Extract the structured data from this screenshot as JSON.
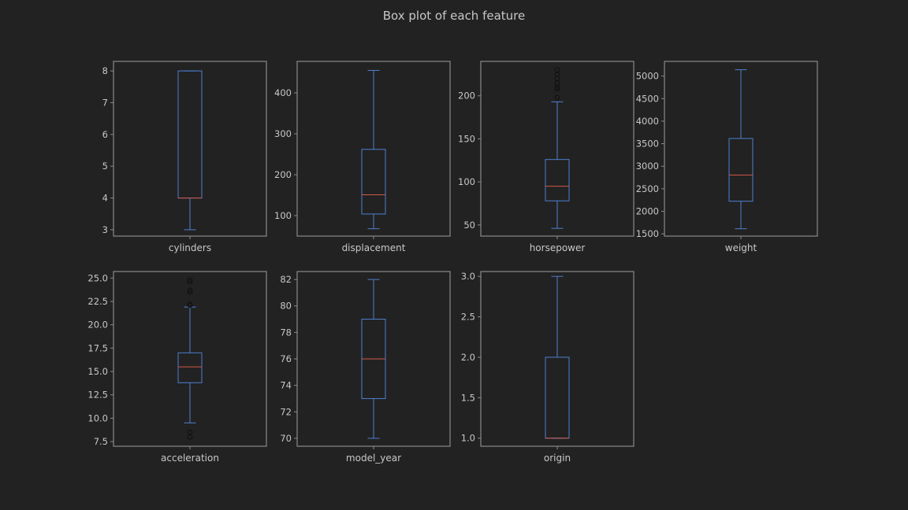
{
  "chart_data": {
    "title": "Box plot of each feature",
    "type": "box",
    "layout": {
      "rows": 2,
      "cols": 4
    },
    "colors": {
      "background": "#222222",
      "frame": "#8a8a8a",
      "text": "#c8c8c8",
      "box": "#4f7fd0",
      "median": "#d05a4a",
      "flier": "#111111"
    },
    "subplots": [
      {
        "label": "cylinders",
        "ylim": [
          2.8,
          8.3
        ],
        "yticks": [
          3,
          4,
          5,
          6,
          7,
          8
        ],
        "tick_format": "int",
        "whisker_low": 3,
        "q1": 4,
        "median": 4,
        "q3": 8,
        "whisker_high": 8,
        "outliers": []
      },
      {
        "label": "displacement",
        "ylim": [
          50,
          477
        ],
        "yticks": [
          100,
          200,
          300,
          400
        ],
        "tick_format": "int",
        "whisker_low": 68,
        "q1": 104,
        "median": 151,
        "q3": 262,
        "whisker_high": 455,
        "outliers": []
      },
      {
        "label": "horsepower",
        "ylim": [
          37,
          240
        ],
        "yticks": [
          50,
          100,
          150,
          200
        ],
        "tick_format": "int",
        "whisker_low": 46,
        "q1": 78,
        "median": 95,
        "q3": 126,
        "whisker_high": 193,
        "outliers": [
          198,
          208,
          210,
          215,
          220,
          225,
          230
        ]
      },
      {
        "label": "weight",
        "ylim": [
          1450,
          5325
        ],
        "yticks": [
          1500,
          2000,
          2500,
          3000,
          3500,
          4000,
          4500,
          5000
        ],
        "tick_format": "int",
        "whisker_low": 1613,
        "q1": 2224,
        "median": 2804,
        "q3": 3615,
        "whisker_high": 5140,
        "outliers": []
      },
      {
        "label": "acceleration",
        "ylim": [
          7.0,
          25.7
        ],
        "yticks": [
          7.5,
          10.0,
          12.5,
          15.0,
          17.5,
          20.0,
          22.5,
          25.0
        ],
        "tick_format": "one",
        "whisker_low": 9.5,
        "q1": 13.8,
        "median": 15.5,
        "q3": 17.0,
        "whisker_high": 21.9,
        "outliers": [
          8.0,
          8.5,
          22.1,
          22.2,
          23.5,
          23.7,
          24.6,
          24.8
        ]
      },
      {
        "label": "model_year",
        "ylim": [
          69.4,
          82.6
        ],
        "yticks": [
          70,
          72,
          74,
          76,
          78,
          80,
          82
        ],
        "tick_format": "int",
        "whisker_low": 70,
        "q1": 73,
        "median": 76,
        "q3": 79,
        "whisker_high": 82,
        "outliers": []
      },
      {
        "label": "origin",
        "ylim": [
          0.9,
          3.06
        ],
        "yticks": [
          1.0,
          1.5,
          2.0,
          2.5,
          3.0
        ],
        "tick_format": "one",
        "whisker_low": 1,
        "q1": 1,
        "median": 1,
        "q3": 2,
        "whisker_high": 3,
        "outliers": []
      }
    ]
  }
}
